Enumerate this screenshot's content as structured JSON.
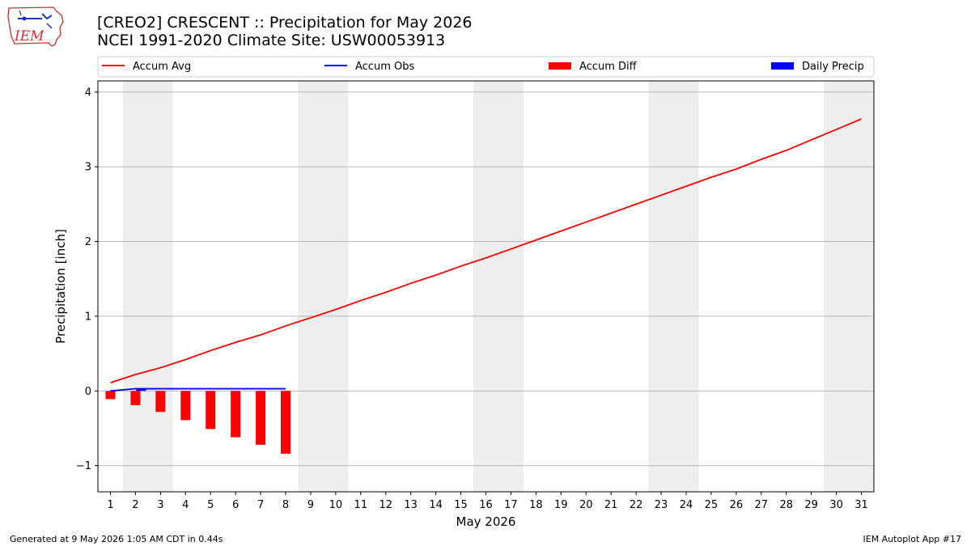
{
  "header": {
    "title_line1": "[CREO2] CRESCENT :: Precipitation for May 2026",
    "title_line2": "NCEI 1991-2020 Climate Site: USW00053913"
  },
  "logo": {
    "text": "IEM",
    "icon": "iem-iowa-map-logo"
  },
  "footer": {
    "left": "Generated at 9 May 2026 1:05 AM CDT in 0.44s",
    "right": "IEM Autoplot App #17"
  },
  "colors": {
    "accum_avg": "#ff0000",
    "accum_obs": "#0000ff",
    "accum_diff": "#ff0000",
    "daily_precip": "#0000ff",
    "weekend_shade": "#eeeeee",
    "grid": "#b0b0b0"
  },
  "chart_data": {
    "type": "line",
    "xlabel": "May 2026",
    "ylabel": "Precipitation [inch]",
    "xlim": [
      0.5,
      31.5
    ],
    "ylim": [
      -1.35,
      4.15
    ],
    "yticks": [
      -1,
      0,
      1,
      2,
      3,
      4
    ],
    "ytick_labels": [
      "−1",
      "0",
      "1",
      "2",
      "3",
      "4"
    ],
    "x": [
      1,
      2,
      3,
      4,
      5,
      6,
      7,
      8,
      9,
      10,
      11,
      12,
      13,
      14,
      15,
      16,
      17,
      18,
      19,
      20,
      21,
      22,
      23,
      24,
      25,
      26,
      27,
      28,
      29,
      30,
      31
    ],
    "grid": "horizontal",
    "legend_position": "top",
    "legend": [
      "Accum Avg",
      "Accum Obs",
      "Accum Diff",
      "Daily Precip"
    ],
    "shaded_weekends": [
      [
        2,
        3
      ],
      [
        9,
        10
      ],
      [
        16,
        17
      ],
      [
        23,
        24
      ],
      [
        30,
        31
      ]
    ],
    "series": [
      {
        "name": "Accum Avg",
        "type": "line",
        "values": [
          0.11,
          0.22,
          0.31,
          0.42,
          0.54,
          0.65,
          0.75,
          0.87,
          0.98,
          1.09,
          1.21,
          1.32,
          1.44,
          1.55,
          1.67,
          1.78,
          1.9,
          2.02,
          2.14,
          2.26,
          2.38,
          2.5,
          2.62,
          2.74,
          2.86,
          2.97,
          3.1,
          3.22,
          3.36,
          3.5,
          3.64
        ]
      },
      {
        "name": "Accum Obs",
        "type": "line",
        "x": [
          1,
          2,
          3,
          4,
          5,
          6,
          7,
          8
        ],
        "values": [
          0.0,
          0.03,
          0.03,
          0.03,
          0.03,
          0.03,
          0.03,
          0.03
        ]
      },
      {
        "name": "Accum Diff",
        "type": "bar",
        "x": [
          1,
          2,
          3,
          4,
          5,
          6,
          7,
          8
        ],
        "values": [
          -0.11,
          -0.19,
          -0.28,
          -0.39,
          -0.51,
          -0.62,
          -0.72,
          -0.84
        ]
      },
      {
        "name": "Daily Precip",
        "type": "bar",
        "x": [
          2
        ],
        "values": [
          0.03
        ]
      }
    ]
  }
}
